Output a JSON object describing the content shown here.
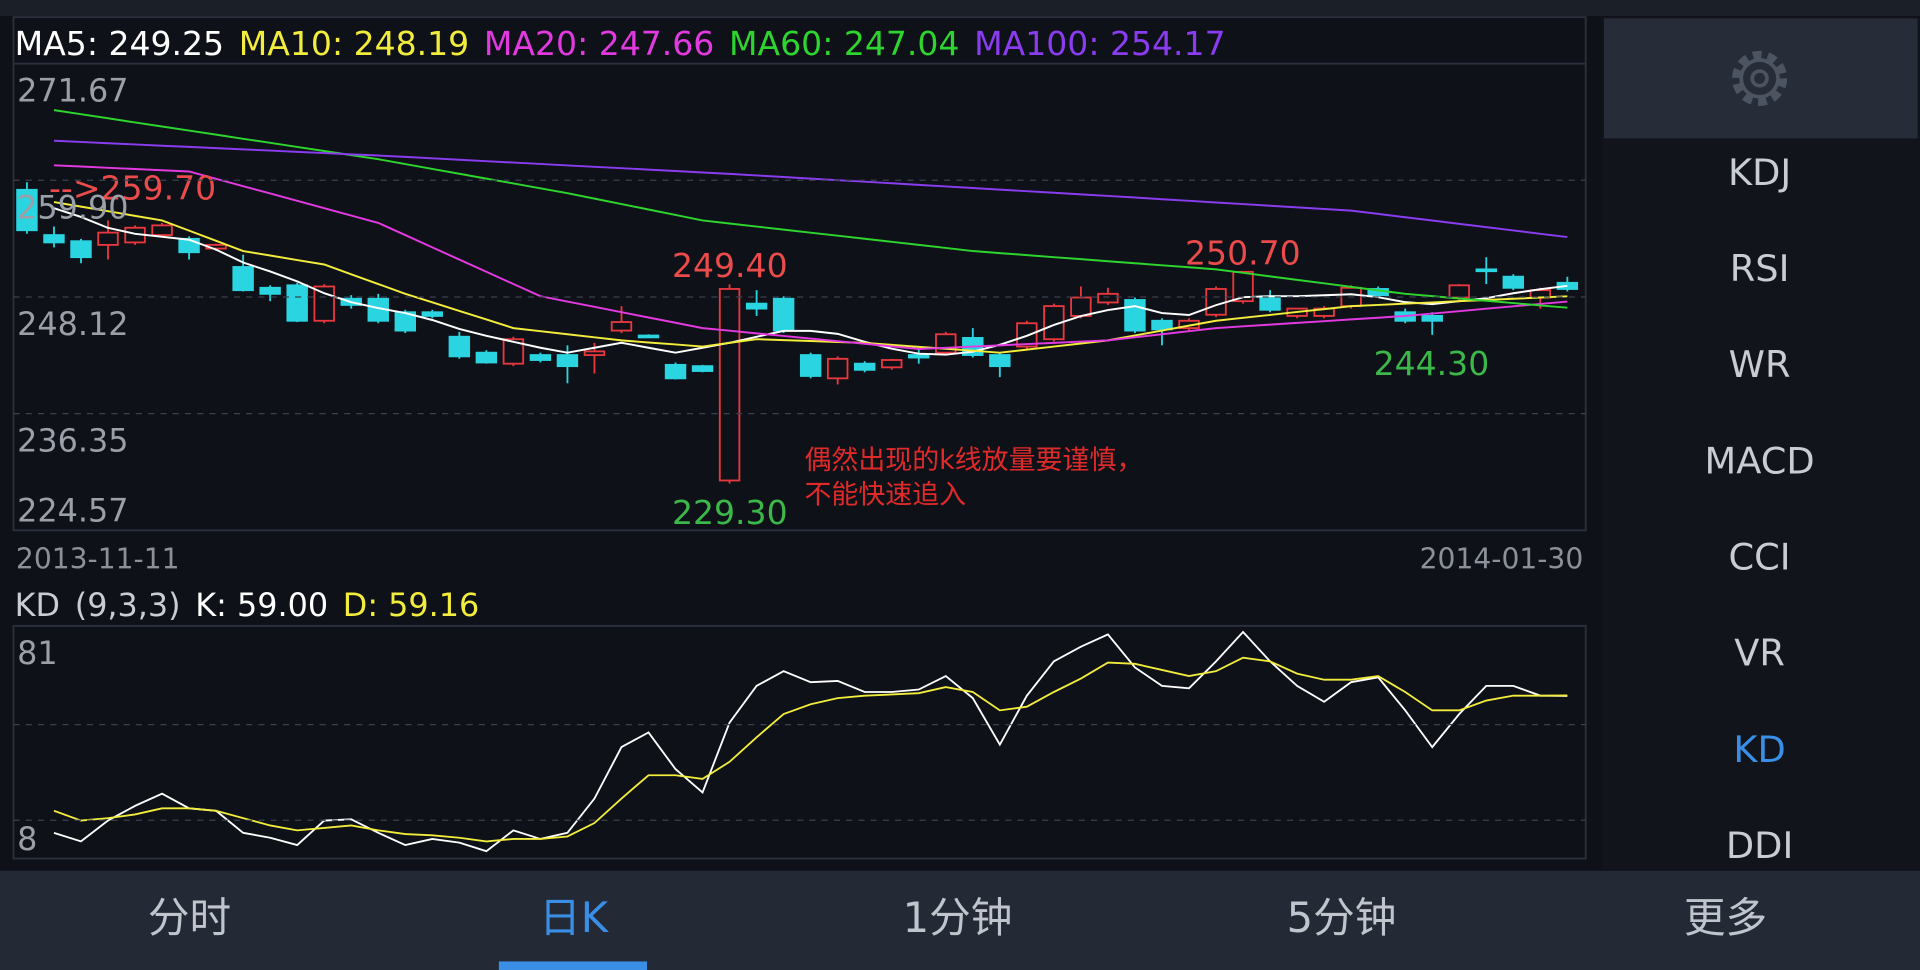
{
  "chart_data": [
    {
      "type": "candlestick",
      "series": [
        {
          "name": "MA5: 249.25",
          "color": "#ffffff",
          "values": [
            null,
            257.09,
            256.2,
            255.1,
            254.5,
            254.2,
            253.9,
            252.9,
            251.6,
            250.7,
            249.7,
            248.5,
            247.6,
            247.0,
            246.5,
            245.8,
            244.9,
            244.2,
            243.6,
            243.0,
            242.5,
            243.0,
            243.5,
            243.0,
            242.5,
            243.0,
            243.5,
            244.1,
            244.7,
            244.7,
            244.4,
            243.6,
            242.9,
            242.4,
            242.3,
            242.6,
            243.3,
            244.2,
            245.3,
            246.2,
            246.8,
            247.2,
            246.5,
            246.3,
            247.3,
            248.1,
            248.2,
            248.2,
            248.3,
            248.4,
            248.1,
            247.6,
            247.4,
            247.7,
            248.0,
            248.5,
            248.9,
            249.25
          ]
        },
        {
          "name": "MA10: 248.19",
          "color": "#f2ec3c",
          "values": [
            null,
            257.7,
            257.24,
            256.78,
            256.31,
            255.85,
            254.82,
            253.79,
            252.76,
            252.31,
            251.85,
            251.4,
            250.41,
            249.43,
            248.44,
            247.58,
            246.71,
            245.85,
            244.98,
            244.67,
            244.36,
            244.05,
            243.74,
            243.53,
            243.33,
            243.12,
            243.49,
            243.86,
            243.77,
            243.68,
            243.58,
            243.49,
            243.29,
            243.09,
            242.9,
            242.7,
            242.5,
            242.81,
            243.12,
            243.43,
            243.74,
            244.24,
            244.73,
            245.23,
            245.72,
            246.02,
            246.31,
            246.61,
            246.9,
            247.2,
            247.32,
            247.45,
            247.57,
            247.7,
            247.82,
            247.94,
            248.07,
            248.19
          ]
        },
        {
          "name": "MA20: 247.66",
          "color": "#e23ae0",
          "values": [
            null,
            261.41,
            261.29,
            261.16,
            261.04,
            260.91,
            260.79,
            260.05,
            259.31,
            258.57,
            257.83,
            257.09,
            256.34,
            255.6,
            254.37,
            253.13,
            251.9,
            250.67,
            249.43,
            248.2,
            247.66,
            247.13,
            246.59,
            246.05,
            245.52,
            244.98,
            244.72,
            244.45,
            244.19,
            243.92,
            243.66,
            243.4,
            243.13,
            242.87,
            242.99,
            243.12,
            243.24,
            243.37,
            243.49,
            243.62,
            243.74,
            244.05,
            244.36,
            244.67,
            244.98,
            245.16,
            245.33,
            245.51,
            245.68,
            245.86,
            246.03,
            246.21,
            246.45,
            246.69,
            246.94,
            247.18,
            247.42,
            247.66
          ]
        },
        {
          "name": "MA60: 247.04",
          "color": "#2ed52e",
          "values": [
            null,
            266.98,
            266.57,
            266.16,
            265.74,
            265.33,
            264.92,
            264.51,
            264.09,
            263.68,
            263.27,
            262.86,
            262.44,
            262.03,
            261.54,
            261.05,
            260.56,
            260.07,
            259.58,
            259.09,
            258.6,
            258.05,
            257.5,
            256.95,
            256.4,
            255.85,
            255.54,
            255.23,
            254.92,
            254.61,
            254.31,
            254.0,
            253.69,
            253.38,
            253.07,
            252.76,
            252.55,
            252.35,
            252.14,
            251.94,
            251.73,
            251.53,
            251.32,
            251.12,
            250.91,
            250.56,
            250.2,
            249.85,
            249.5,
            249.14,
            248.79,
            248.44,
            248.21,
            247.97,
            247.74,
            247.51,
            247.27,
            247.04
          ]
        },
        {
          "name": "MA100: 254.17",
          "color": "#8a3cf0",
          "values": [
            null,
            263.89,
            263.77,
            263.64,
            263.52,
            263.39,
            263.27,
            263.15,
            263.02,
            262.9,
            262.77,
            262.65,
            262.52,
            262.4,
            262.26,
            262.12,
            261.97,
            261.83,
            261.69,
            261.55,
            261.4,
            261.26,
            261.12,
            260.98,
            260.84,
            260.69,
            260.55,
            260.39,
            260.23,
            260.07,
            259.91,
            259.76,
            259.6,
            259.44,
            259.28,
            259.12,
            258.96,
            258.8,
            258.64,
            258.48,
            258.32,
            258.16,
            257.99,
            257.83,
            257.66,
            257.5,
            257.33,
            257.17,
            257.0,
            256.84,
            256.51,
            256.17,
            255.84,
            255.5,
            255.17,
            254.84,
            254.5,
            254.17
          ]
        }
      ],
      "candles": {
        "open": [
          258.94,
          254.37,
          253.75,
          253.38,
          253.63,
          254.37,
          253.99,
          253.01,
          251.15,
          249.05,
          249.3,
          245.72,
          247.94,
          247.94,
          246.58,
          246.58,
          244.11,
          242.5,
          241.39,
          242.26,
          242.26,
          242.26,
          244.73,
          244.23,
          241.27,
          241.14,
          229.6,
          247.45,
          247.94,
          242.26,
          239.91,
          241.39,
          241.02,
          242.26,
          242.5,
          243.99,
          242.26,
          243.12,
          243.86,
          246.21,
          247.57,
          247.82,
          245.72,
          244.98,
          246.33,
          247.7,
          248.19,
          246.21,
          246.21,
          247.2,
          248.93,
          246.58,
          246.21,
          248.07,
          250.91,
          250.17,
          248.07,
          249.55
        ],
        "high": [
          259.7,
          255.23,
          253.99,
          255.85,
          255.35,
          255.6,
          254.24,
          253.5,
          252.39,
          249.3,
          249.55,
          249.42,
          248.31,
          248.44,
          246.83,
          246.83,
          244.6,
          242.75,
          244.11,
          242.5,
          243.24,
          243.49,
          247.2,
          244.36,
          241.51,
          241.27,
          249.4,
          248.81,
          248.19,
          242.5,
          242.13,
          241.64,
          241.88,
          242.87,
          244.6,
          244.98,
          242.5,
          245.72,
          247.45,
          249.18,
          249.05,
          248.07,
          245.97,
          245.97,
          249.18,
          250.7,
          248.81,
          246.95,
          247.2,
          249.3,
          249.18,
          246.95,
          246.58,
          249.42,
          252.14,
          250.42,
          249.05,
          250.17
        ],
        "low": [
          254.5,
          253.13,
          251.53,
          251.9,
          253.38,
          254.12,
          251.9,
          252.76,
          248.68,
          247.7,
          245.59,
          245.47,
          246.95,
          245.47,
          244.48,
          245.97,
          241.89,
          241.39,
          241.14,
          241.51,
          239.41,
          240.4,
          244.48,
          243.99,
          239.79,
          240.52,
          229.3,
          246.21,
          244.48,
          239.91,
          239.29,
          240.52,
          240.77,
          241.39,
          242.26,
          242.01,
          240.03,
          242.87,
          243.61,
          245.97,
          247.32,
          244.48,
          243.24,
          244.73,
          246.08,
          247.45,
          246.58,
          245.97,
          245.97,
          246.95,
          248.07,
          245.47,
          244.3,
          247.82,
          249.42,
          248.81,
          246.95,
          248.68
        ],
        "close": [
          254.86,
          253.63,
          252.14,
          254.62,
          255.11,
          255.35,
          252.64,
          253.38,
          248.81,
          248.44,
          245.72,
          249.18,
          247.32,
          245.72,
          244.73,
          246.21,
          242.13,
          241.51,
          243.86,
          241.76,
          241.14,
          242.63,
          245.59,
          244.11,
          239.91,
          240.65,
          248.93,
          246.95,
          244.73,
          240.15,
          241.88,
          240.77,
          241.76,
          242.01,
          244.36,
          242.26,
          241.14,
          245.47,
          247.2,
          248.07,
          248.44,
          244.73,
          244.85,
          245.72,
          248.93,
          250.66,
          246.83,
          246.95,
          246.95,
          249.05,
          248.31,
          245.72,
          245.72,
          249.3,
          250.79,
          249.05,
          248.81,
          248.93
        ]
      },
      "up_color": "#e8383d",
      "down_color": "#2ad4e0",
      "ylim": [
        224.57,
        271.67
      ],
      "yticks": [
        271.67,
        {
          "value": 259.9,
          "label": "259.90"
        },
        248.12,
        236.35,
        224.57
      ],
      "grid": true,
      "x_labels": [
        "2013-11-11",
        "2014-01-30"
      ],
      "annotations": [
        "-->259.70",
        "249.40",
        "229.30",
        "250.70",
        "244.30"
      ],
      "note": [
        "偶然出现的k线放量要谨慎，",
        "不能快速追入"
      ]
    },
    {
      "type": "line",
      "title": "KD",
      "params": "(9,3,3)",
      "series": [
        {
          "name": "K: 59.00",
          "color": "#ffffff",
          "values": [
            null,
            16.07,
            13.38,
            19.91,
            24.52,
            28.36,
            23.75,
            22.98,
            16.07,
            14.53,
            12.23,
            19.91,
            20.3,
            16.07,
            12.23,
            14.15,
            13.0,
            10.31,
            16.84,
            14.15,
            16.07,
            26.83,
            42.96,
            47.57,
            36.05,
            28.75,
            50.65,
            62.17,
            66.78,
            63.33,
            63.71,
            60.25,
            60.25,
            61.02,
            65.25,
            58.33,
            43.73,
            59.1,
            69.86,
            74.47,
            78.31,
            67.94,
            62.17,
            61.41,
            69.86,
            79.08,
            69.86,
            62.17,
            57.18,
            63.33,
            64.86,
            54.49,
            42.96,
            53.34,
            62.17,
            62.17,
            59.1,
            59.0
          ]
        },
        {
          "name": "D: 59.16",
          "color": "#f2ec3c",
          "values": [
            null,
            22.98,
            19.91,
            20.68,
            21.83,
            23.75,
            23.75,
            22.98,
            20.68,
            18.38,
            16.84,
            17.61,
            18.38,
            16.84,
            15.69,
            15.3,
            14.53,
            13.38,
            14.15,
            14.15,
            14.92,
            19.14,
            26.83,
            34.13,
            34.13,
            32.97,
            38.35,
            46.04,
            53.34,
            56.41,
            58.33,
            59.1,
            59.48,
            59.87,
            61.79,
            60.25,
            54.49,
            55.64,
            60.25,
            64.48,
            69.47,
            69.09,
            67.17,
            65.25,
            66.78,
            71.01,
            69.86,
            66.02,
            64.1,
            64.1,
            65.25,
            60.25,
            54.49,
            54.49,
            57.56,
            59.1,
            59.1,
            59.16
          ]
        }
      ],
      "ylim": [
        8,
        81
      ],
      "yticks": [
        81,
        8
      ],
      "grid_values": [
        50,
        20
      ]
    }
  ],
  "sidebar": {
    "items": [
      "KDJ",
      "RSI",
      "WR",
      "MACD",
      "CCI",
      "VR",
      "KD",
      "DDI"
    ],
    "selected_index": 6
  },
  "tabs": {
    "items": [
      "分时",
      "日K",
      "1分钟",
      "5分钟",
      "更多"
    ],
    "selected_index": 1
  }
}
